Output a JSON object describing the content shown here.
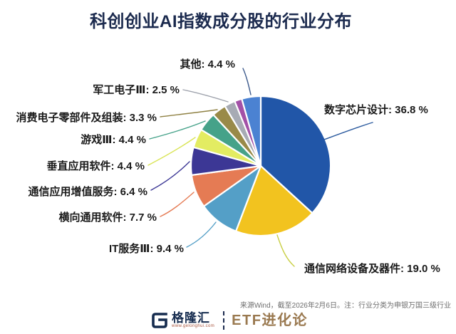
{
  "title": "科创创业AI指数成分股的行业分布",
  "chart_data": {
    "type": "pie",
    "title": "科创创业AI指数成分股的行业分布",
    "start_angle": "12-oclock-clockwise",
    "legend_position": "none",
    "slices": [
      {
        "label": "数字芯片设计",
        "value": 36.8,
        "display": "数字芯片设计: 36.8 %",
        "color": "#2156a8"
      },
      {
        "label": "通信网络设备及器件",
        "value": 19.0,
        "display": "通信网络设备及器件: 19.0 %",
        "color": "#f2c31f"
      },
      {
        "label": "IT服务Ⅲ",
        "value": 9.4,
        "display": "IT服务Ⅲ: 9.4 %",
        "color": "#549fc7"
      },
      {
        "label": "横向通用软件",
        "value": 7.7,
        "display": "横向通用软件: 7.7 %",
        "color": "#e57b54"
      },
      {
        "label": "通信应用增值服务",
        "value": 6.4,
        "display": "通信应用增值服务: 6.4 %",
        "color": "#3c3795"
      },
      {
        "label": "垂直应用软件",
        "value": 4.4,
        "display": "垂直应用软件: 4.4 %",
        "color": "#e3ec62"
      },
      {
        "label": "游戏Ⅲ",
        "value": 4.4,
        "display": "游戏Ⅲ: 4.4 %",
        "color": "#45a289"
      },
      {
        "label": "消费电子零部件及组装",
        "value": 3.3,
        "display": "消费电子零部件及组装: 3.3 %",
        "color": "#998a48"
      },
      {
        "label": "军工电子Ⅲ",
        "value": 2.5,
        "display": "军工电子Ⅲ: 2.5 %",
        "color": "#a7abb4"
      },
      {
        "label": "",
        "value": 1.7,
        "display": "",
        "color": "#a351a7"
      },
      {
        "label": "其他",
        "value": 4.4,
        "display": "其他: 4.4 %",
        "color": "#4b82d2"
      }
    ]
  },
  "footer": {
    "source_note": "来源Wind，截至2026年2月6日。注：行业分类为申银万国三级行业",
    "logo": {
      "brand": "格隆汇",
      "url": "www.gelonghui.com",
      "product": "ETF进化论"
    }
  },
  "colors": {
    "title": "#1b2a4e",
    "label_text": "#1a1a1a",
    "footer_text": "#6e6e6e",
    "logo_navy": "#152b4e",
    "logo_bronze": "#9a7950",
    "background": "#ffffff"
  }
}
